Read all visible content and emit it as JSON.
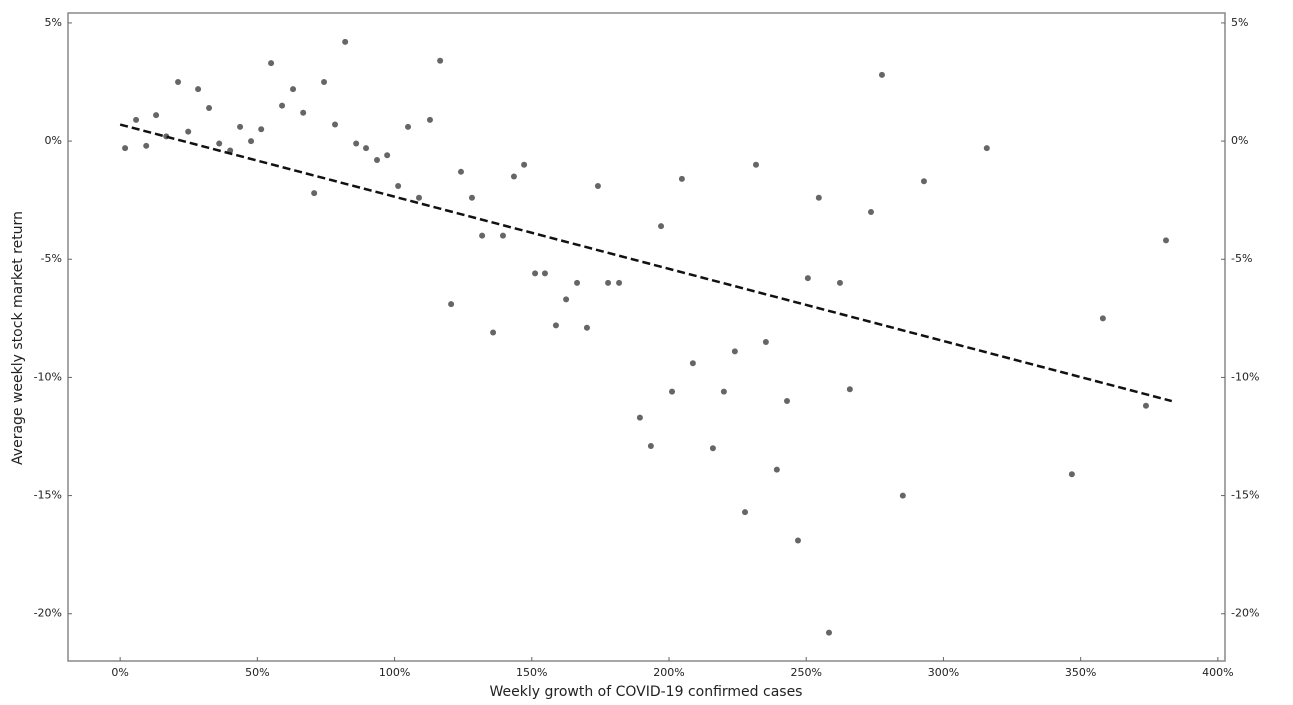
{
  "chart_data": {
    "type": "scatter",
    "xlabel": "Weekly growth of COVID-19 confirmed cases",
    "ylabel": "Average weekly stock market return",
    "xlim": [
      -19,
      402.6
    ],
    "ylim": [
      -22.0,
      5.42
    ],
    "xticks": [
      {
        "value": 0,
        "label": "0%"
      },
      {
        "value": 50,
        "label": "50%"
      },
      {
        "value": 100,
        "label": "100%"
      },
      {
        "value": 150,
        "label": "150%"
      },
      {
        "value": 200,
        "label": "200%"
      },
      {
        "value": 250,
        "label": "250%"
      },
      {
        "value": 300,
        "label": "300%"
      },
      {
        "value": 350,
        "label": "350%"
      },
      {
        "value": 400,
        "label": "400%"
      }
    ],
    "yticks": [
      {
        "value": 5,
        "label": "5%"
      },
      {
        "value": 0,
        "label": "0%"
      },
      {
        "value": -5,
        "label": "-5%"
      },
      {
        "value": -10,
        "label": "-10%"
      },
      {
        "value": -15,
        "label": "-15%"
      },
      {
        "value": -20,
        "label": "-20%"
      }
    ],
    "color": "#666666",
    "x": [
      1.8,
      5.8,
      9.5,
      13.1,
      16.8,
      21.1,
      24.8,
      28.4,
      32.4,
      36.1,
      40.1,
      43.7,
      47.7,
      51.4,
      55.0,
      59.0,
      63.0,
      66.7,
      70.7,
      74.3,
      78.3,
      82.0,
      86.0,
      89.6,
      93.6,
      97.3,
      101.3,
      104.9,
      108.9,
      112.9,
      116.6,
      120.6,
      124.2,
      128.2,
      131.9,
      135.9,
      139.5,
      143.5,
      147.2,
      151.2,
      154.8,
      158.8,
      162.5,
      166.5,
      170.1,
      174.1,
      177.8,
      181.8,
      189.4,
      193.4,
      197.1,
      201.1,
      204.7,
      208.7,
      216.0,
      220.0,
      224.0,
      227.7,
      231.7,
      235.3,
      239.3,
      243.0,
      247.0,
      250.6,
      254.6,
      258.3,
      262.3,
      265.9,
      273.6,
      277.6,
      285.2,
      292.9,
      315.8,
      346.8,
      358.1,
      373.8,
      381.1
    ],
    "values": [
      -0.3,
      0.9,
      -0.2,
      1.1,
      0.2,
      2.5,
      0.4,
      2.2,
      1.4,
      -0.1,
      -0.4,
      0.6,
      0.0,
      0.5,
      3.3,
      1.5,
      2.2,
      1.2,
      -2.2,
      2.5,
      0.7,
      4.2,
      -0.1,
      -0.3,
      -0.8,
      -0.6,
      -1.9,
      0.6,
      -2.4,
      0.9,
      3.4,
      -6.9,
      -1.3,
      -2.4,
      -4.0,
      -8.1,
      -4.0,
      -1.5,
      -1.0,
      -5.6,
      -5.6,
      -7.8,
      -6.7,
      -6.0,
      -7.9,
      -1.9,
      -6.0,
      -6.0,
      -11.7,
      -12.9,
      -3.6,
      -10.6,
      -1.6,
      -9.4,
      -13.0,
      -10.6,
      -8.9,
      -15.7,
      -1.0,
      -8.5,
      -13.9,
      -11.0,
      -16.9,
      -5.8,
      -2.4,
      -20.8,
      -6.0,
      -10.5,
      -3.0,
      2.8,
      -15.0,
      -1.7,
      -0.3,
      -14.1,
      -7.5,
      -11.2,
      -4.2
    ],
    "trendline": {
      "x": [
        0,
        383.2
      ],
      "y": [
        0.7,
        -11.0
      ],
      "color": "#111111"
    }
  }
}
